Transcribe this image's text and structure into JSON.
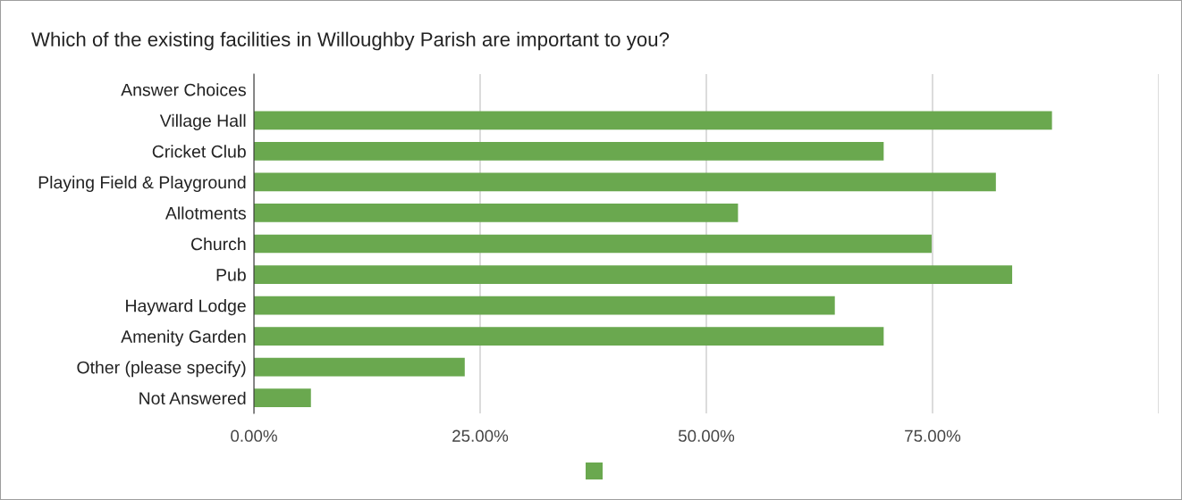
{
  "chart_data": {
    "type": "bar",
    "orientation": "horizontal",
    "title": "Which of the existing facilities in Willoughby Parish are important to you?",
    "categories": [
      "Answer Choices",
      "Village Hall",
      "Cricket Club",
      "Playing Field & Playground",
      "Allotments",
      "Church",
      "Pub",
      "Hayward Lodge",
      "Amenity Garden",
      "Other (please specify)",
      "Not Answered"
    ],
    "series": [
      {
        "color": "#6aa84f",
        "values": [
          null,
          88.2,
          69.6,
          82.0,
          53.5,
          74.9,
          83.8,
          64.2,
          69.6,
          23.3,
          6.3
        ]
      }
    ],
    "xlim": [
      0,
      100
    ],
    "xticks": [
      {
        "value": 0,
        "label": "0.00%"
      },
      {
        "value": 25,
        "label": "25.00%"
      },
      {
        "value": 50,
        "label": "50.00%"
      },
      {
        "value": 75,
        "label": "75.00%"
      },
      {
        "value": 100,
        "label": null
      }
    ],
    "grid": "x"
  }
}
